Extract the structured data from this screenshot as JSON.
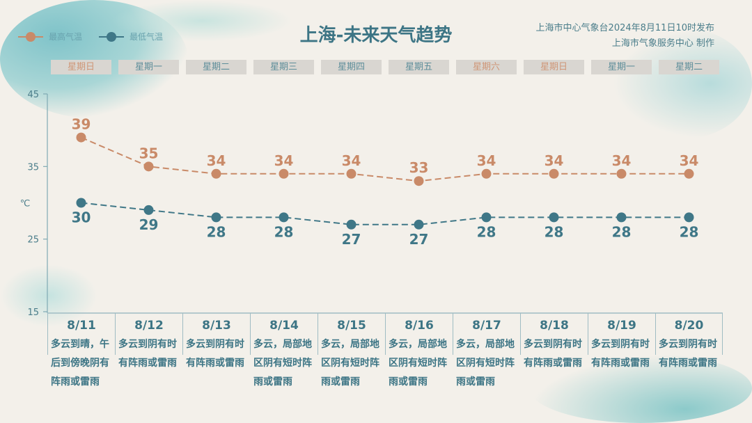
{
  "header": {
    "title": "上海-未来天气趋势",
    "source_line1": "上海市中心气象台2024年8月11日10时发布",
    "source_line2": "上海市气象服务中心 制作"
  },
  "colors": {
    "high": "#c98a68",
    "low": "#3f7787",
    "title": "#3d7585"
  },
  "chart_data": {
    "type": "line",
    "title": "上海-未来天气趋势",
    "ylabel": "℃",
    "ylim": [
      15,
      45
    ],
    "yticks": [
      15,
      25,
      35,
      45
    ],
    "grid": false,
    "legend": "top-left",
    "categories": [
      "8/11",
      "8/12",
      "8/13",
      "8/14",
      "8/15",
      "8/16",
      "8/17",
      "8/18",
      "8/19",
      "8/20"
    ],
    "weekdays": [
      "星期日",
      "星期一",
      "星期二",
      "星期三",
      "星期四",
      "星期五",
      "星期六",
      "星期日",
      "星期一",
      "星期二"
    ],
    "weekend": [
      true,
      false,
      false,
      false,
      false,
      false,
      true,
      true,
      false,
      false
    ],
    "series": [
      {
        "name": "最高气温",
        "values": [
          39,
          35,
          34,
          34,
          34,
          33,
          34,
          34,
          34,
          34
        ]
      },
      {
        "name": "最低气温",
        "values": [
          30,
          29,
          28,
          28,
          27,
          27,
          28,
          28,
          28,
          28
        ]
      }
    ],
    "descriptions": [
      "多云到晴，午后到傍晚阴有阵雨或雷雨",
      "多云到阴有时有阵雨或雷雨",
      "多云到阴有时有阵雨或雷雨",
      "多云，局部地区阴有短时阵雨或雷雨",
      "多云，局部地区阴有短时阵雨或雷雨",
      "多云，局部地区阴有短时阵雨或雷雨",
      "多云，局部地区阴有短时阵雨或雷雨",
      "多云到阴有时有阵雨或雷雨",
      "多云到阴有时有阵雨或雷雨",
      "多云到阴有时有阵雨或雷雨"
    ]
  }
}
